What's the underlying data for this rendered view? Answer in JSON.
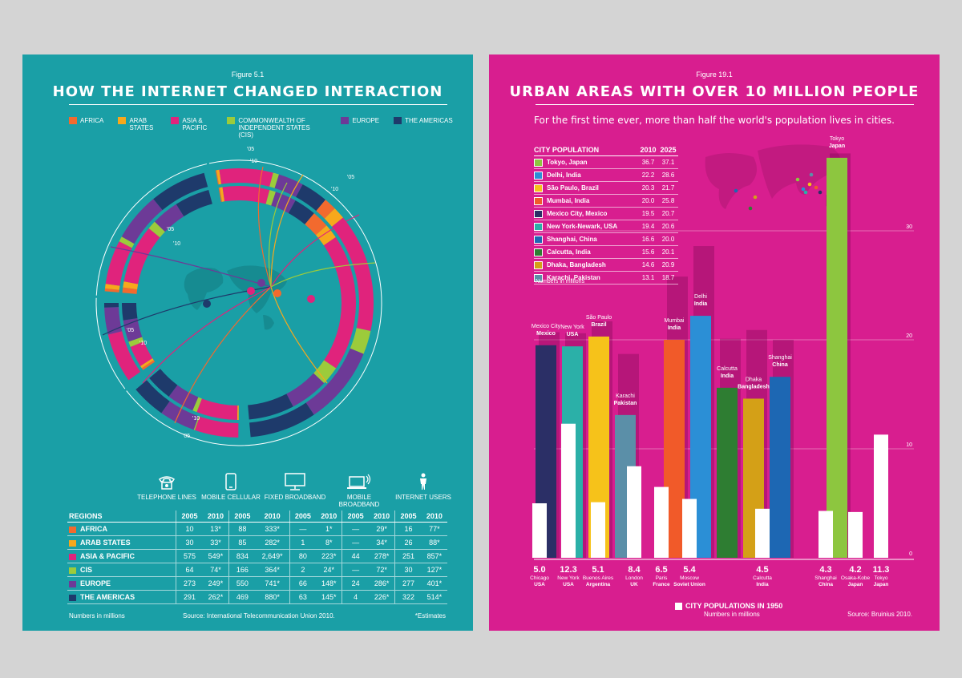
{
  "left": {
    "figure": "Figure 5.1",
    "title": "HOW THE INTERNET CHANGED INTERACTION",
    "legend": [
      {
        "label": "AFRICA",
        "color": "#f26a2e"
      },
      {
        "label": "ARAB STATES",
        "color": "#f7a81b"
      },
      {
        "label": "ASIA & PACIFIC",
        "color": "#e0237c"
      },
      {
        "label": "COMMONWEALTH OF INDEPENDENT STATES (CIS)",
        "color": "#9ccb3b"
      },
      {
        "label": "EUROPE",
        "color": "#6d3a97"
      },
      {
        "label": "THE AMERICAS",
        "color": "#1e3a6b"
      }
    ],
    "year_labels": {
      "y05": "'05",
      "y10": "'10"
    },
    "categories": [
      "TELEPHONE LINES",
      "MOBILE CELLULAR",
      "FIXED BROADBAND",
      "MOBILE BROADBAND",
      "INTERNET USERS"
    ],
    "category_icons": [
      "telephone-icon",
      "mobile-phone-icon",
      "monitor-icon",
      "laptop-wifi-icon",
      "person-icon"
    ],
    "table_header": {
      "regions": "REGIONS",
      "y2005": "2005",
      "y2010": "2010"
    },
    "rows": [
      {
        "region": "AFRICA",
        "color": "#f26a2e",
        "values": [
          "10",
          "13*",
          "88",
          "333*",
          "—",
          "1*",
          "—",
          "29*",
          "16",
          "77*"
        ]
      },
      {
        "region": "ARAB STATES",
        "color": "#f7a81b",
        "values": [
          "30",
          "33*",
          "85",
          "282*",
          "1",
          "8*",
          "—",
          "34*",
          "26",
          "88*"
        ]
      },
      {
        "region": "ASIA & PACIFIC",
        "color": "#e0237c",
        "values": [
          "575",
          "549*",
          "834",
          "2,649*",
          "80",
          "223*",
          "44",
          "278*",
          "251",
          "857*"
        ]
      },
      {
        "region": "CIS",
        "color": "#9ccb3b",
        "values": [
          "64",
          "74*",
          "166",
          "364*",
          "2",
          "24*",
          "—",
          "72*",
          "30",
          "127*"
        ]
      },
      {
        "region": "EUROPE",
        "color": "#6d3a97",
        "values": [
          "273",
          "249*",
          "550",
          "741*",
          "66",
          "148*",
          "24",
          "286*",
          "277",
          "401*"
        ]
      },
      {
        "region": "THE AMERICAS",
        "color": "#1e3a6b",
        "values": [
          "291",
          "262*",
          "469",
          "880*",
          "63",
          "145*",
          "4",
          "226*",
          "322",
          "514*"
        ]
      }
    ],
    "note": "Numbers in millions",
    "source": "Source: International Telecommunication Union 2010.",
    "estimates": "*Estimates"
  },
  "right": {
    "figure": "Figure 19.1",
    "title": "URBAN AREAS WITH OVER 10 MILLION PEOPLE",
    "subtitle": "For the first time ever, more than half the world's population lives in cities.",
    "table_header": {
      "city": "CITY POPULATION",
      "y2010": "2010",
      "y2025": "2025"
    },
    "table_note": "Numbers in millions",
    "legend_1950": "CITY POPULATIONS IN 1950",
    "note": "Numbers in millions",
    "source": "Source: Bruinius 2010.",
    "axis_ticks": [
      "0",
      "10",
      "20",
      "30"
    ]
  },
  "chart_data": [
    {
      "type": "table",
      "title": "HOW THE INTERNET CHANGED INTERACTION",
      "columns": [
        "TELEPHONE LINES 2005",
        "TELEPHONE LINES 2010",
        "MOBILE CELLULAR 2005",
        "MOBILE CELLULAR 2010",
        "FIXED BROADBAND 2005",
        "FIXED BROADBAND 2010",
        "MOBILE BROADBAND 2005",
        "MOBILE BROADBAND 2010",
        "INTERNET USERS 2005",
        "INTERNET USERS 2010"
      ],
      "rows": [
        "AFRICA",
        "ARAB STATES",
        "ASIA & PACIFIC",
        "CIS",
        "EUROPE",
        "THE AMERICAS"
      ],
      "values": [
        [
          10,
          13,
          88,
          333,
          0,
          1,
          0,
          29,
          16,
          77
        ],
        [
          30,
          33,
          85,
          282,
          1,
          8,
          0,
          34,
          26,
          88
        ],
        [
          575,
          549,
          834,
          2649,
          80,
          223,
          44,
          278,
          251,
          857
        ],
        [
          64,
          74,
          166,
          364,
          2,
          24,
          0,
          72,
          30,
          127
        ],
        [
          273,
          249,
          550,
          741,
          66,
          148,
          24,
          286,
          277,
          401
        ],
        [
          291,
          262,
          469,
          880,
          63,
          145,
          4,
          226,
          322,
          514
        ]
      ]
    },
    {
      "type": "bar",
      "title": "URBAN AREAS WITH OVER 10 MILLION PEOPLE",
      "ylim": [
        0,
        40
      ],
      "cities_2010": [
        {
          "name": "Tokyo, Japan",
          "label": "Tokyo",
          "country": "Japan",
          "color": "#8dc63f",
          "p2010": 36.7,
          "p2025": 37.1
        },
        {
          "name": "Delhi, India",
          "label": "Delhi",
          "country": "India",
          "color": "#2b8fd6",
          "p2010": 22.2,
          "p2025": 28.6
        },
        {
          "name": "São Paulo, Brazil",
          "label": "São Paulo",
          "country": "Brazil",
          "color": "#f6c21a",
          "p2010": 20.3,
          "p2025": 21.7
        },
        {
          "name": "Mumbai, India",
          "label": "Mumbai",
          "country": "India",
          "color": "#f15a29",
          "p2010": 20.0,
          "p2025": 25.8
        },
        {
          "name": "Mexico City, Mexico",
          "label": "Mexico City",
          "country": "Mexico",
          "color": "#2b2f66",
          "p2010": 19.5,
          "p2025": 20.7
        },
        {
          "name": "New York-Newark, USA",
          "label": "New York",
          "country": "USA",
          "color": "#2bb0a8",
          "p2010": 19.4,
          "p2025": 20.6
        },
        {
          "name": "Shanghai, China",
          "label": "Shanghai",
          "country": "China",
          "color": "#1d67b3",
          "p2010": 16.6,
          "p2025": 20.0
        },
        {
          "name": "Calcutta, India",
          "label": "Calcutta",
          "country": "India",
          "color": "#2e7d32",
          "p2010": 15.6,
          "p2025": 20.1
        },
        {
          "name": "Dhaka, Bangladesh",
          "label": "Dhaka",
          "country": "Bangladesh",
          "color": "#d4a017",
          "p2010": 14.6,
          "p2025": 20.9
        },
        {
          "name": "Karachi, Pakistan",
          "label": "Karachi",
          "country": "Pakistan",
          "color": "#5b8fa8",
          "p2010": 13.1,
          "p2025": 18.7
        }
      ],
      "bars_order": [
        "Mexico City",
        "New York",
        "São Paulo",
        "Karachi",
        "Mumbai",
        "Delhi",
        "Calcutta",
        "Dhaka",
        "Shanghai",
        "Tokyo"
      ],
      "cities_1950": [
        {
          "value": "5.0",
          "city": "Chicago",
          "country": "USA",
          "v": 5.0
        },
        {
          "value": "12.3",
          "city": "New York",
          "country": "USA",
          "v": 12.3
        },
        {
          "value": "5.1",
          "city": "Buenos Aires",
          "country": "Argentina",
          "v": 5.1
        },
        {
          "value": "8.4",
          "city": "London",
          "country": "UK",
          "v": 8.4
        },
        {
          "value": "6.5",
          "city": "Paris",
          "country": "France",
          "v": 6.5
        },
        {
          "value": "5.4",
          "city": "Moscow",
          "country": "Soviet Union",
          "v": 5.4
        },
        {
          "value": "4.5",
          "city": "Calcutta",
          "country": "India",
          "v": 4.5
        },
        {
          "value": "4.3",
          "city": "Shanghai",
          "country": "China",
          "v": 4.3
        },
        {
          "value": "4.2",
          "city": "Osaka-Kobe",
          "country": "Japan",
          "v": 4.2
        },
        {
          "value": "11.3",
          "city": "Tokyo",
          "country": "Japan",
          "v": 11.3
        }
      ]
    }
  ]
}
